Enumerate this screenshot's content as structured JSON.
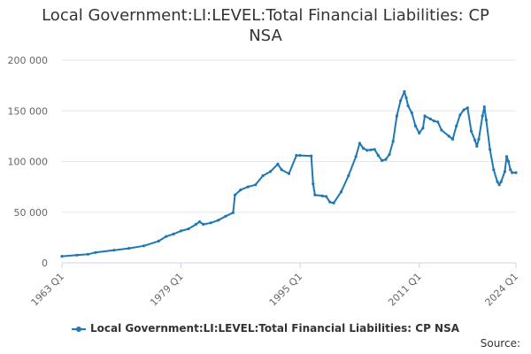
{
  "chart_data": {
    "type": "line",
    "title": "Local Government:LI:LEVEL:Total Financial Liabilities: CP NSA",
    "title_lines": [
      "Local Government:LI:LEVEL:Total Financial Liabilities: CP",
      "NSA"
    ],
    "xlabel": "",
    "ylabel": "",
    "ylim": [
      0,
      200000
    ],
    "yticks": [
      0,
      50000,
      100000,
      150000,
      200000
    ],
    "ytick_labels": [
      "0",
      "50 000",
      "100 000",
      "150 000",
      "200 000"
    ],
    "xlim": [
      1963.0,
      2024.0
    ],
    "xticks": [
      1963.0,
      1979.0,
      1995.0,
      2011.0,
      2024.0
    ],
    "xtick_labels": [
      "1963 Q1",
      "1979 Q1",
      "1995 Q1",
      "2011 Q1",
      "2024 Q1"
    ],
    "grid": true,
    "legend_position": "bottom",
    "color": "#1f77b4",
    "series": [
      {
        "name": "Local Government:LI:LEVEL:Total Financial Liabilities: CP NSA",
        "points": [
          [
            1963.0,
            6500
          ],
          [
            1965.0,
            7600
          ],
          [
            1966.5,
            8500
          ],
          [
            1967.5,
            10200
          ],
          [
            1970.0,
            12500
          ],
          [
            1972.0,
            14300
          ],
          [
            1974.0,
            16800
          ],
          [
            1976.0,
            21500
          ],
          [
            1977.0,
            26000
          ],
          [
            1978.0,
            28500
          ],
          [
            1979.0,
            31500
          ],
          [
            1980.0,
            33500
          ],
          [
            1981.0,
            38000
          ],
          [
            1981.5,
            40500
          ],
          [
            1982.0,
            38000
          ],
          [
            1983.0,
            39500
          ],
          [
            1984.0,
            42000
          ],
          [
            1985.0,
            46000
          ],
          [
            1986.0,
            49500
          ],
          [
            1986.25,
            67000
          ],
          [
            1987.0,
            72000
          ],
          [
            1988.0,
            75000
          ],
          [
            1989.0,
            77000
          ],
          [
            1990.0,
            86000
          ],
          [
            1991.0,
            90000
          ],
          [
            1992.0,
            97500
          ],
          [
            1992.5,
            92000
          ],
          [
            1993.5,
            88000
          ],
          [
            1994.5,
            106000
          ],
          [
            1995.0,
            106000
          ],
          [
            1996.5,
            105500
          ],
          [
            1996.75,
            78000
          ],
          [
            1997.0,
            67000
          ],
          [
            1998.0,
            66000
          ],
          [
            1998.5,
            65500
          ],
          [
            1999.0,
            60000
          ],
          [
            1999.5,
            59000
          ],
          [
            2000.5,
            70000
          ],
          [
            2001.5,
            86000
          ],
          [
            2002.5,
            105000
          ],
          [
            2003.0,
            118000
          ],
          [
            2003.5,
            113000
          ],
          [
            2004.0,
            111000
          ],
          [
            2004.5,
            111500
          ],
          [
            2005.0,
            112000
          ],
          [
            2005.5,
            106000
          ],
          [
            2006.0,
            101000
          ],
          [
            2006.5,
            102000
          ],
          [
            2007.0,
            107000
          ],
          [
            2007.5,
            120000
          ],
          [
            2008.0,
            145000
          ],
          [
            2008.5,
            160000
          ],
          [
            2009.0,
            169000
          ],
          [
            2009.25,
            163000
          ],
          [
            2009.5,
            155000
          ],
          [
            2010.0,
            148000
          ],
          [
            2010.5,
            135000
          ],
          [
            2011.0,
            128000
          ],
          [
            2011.5,
            133000
          ],
          [
            2011.75,
            145000
          ],
          [
            2012.5,
            142000
          ],
          [
            2013.0,
            140000
          ],
          [
            2013.5,
            139000
          ],
          [
            2014.0,
            131000
          ],
          [
            2015.0,
            125000
          ],
          [
            2015.5,
            122000
          ],
          [
            2016.0,
            135000
          ],
          [
            2016.5,
            146000
          ],
          [
            2017.0,
            151000
          ],
          [
            2017.5,
            153000
          ],
          [
            2018.0,
            130000
          ],
          [
            2018.5,
            121000
          ],
          [
            2018.75,
            115000
          ],
          [
            2019.0,
            122000
          ],
          [
            2019.5,
            145000
          ],
          [
            2019.75,
            154000
          ],
          [
            2020.0,
            141000
          ],
          [
            2020.5,
            112000
          ],
          [
            2021.0,
            92000
          ],
          [
            2021.5,
            80000
          ],
          [
            2021.75,
            77000
          ],
          [
            2022.0,
            80000
          ],
          [
            2022.5,
            90000
          ],
          [
            2022.75,
            105000
          ],
          [
            2023.0,
            100000
          ],
          [
            2023.25,
            92000
          ],
          [
            2023.5,
            89000
          ],
          [
            2024.0,
            89000
          ]
        ]
      }
    ],
    "legend_label": "Local Government:LI:LEVEL:Total Financial Liabilities: CP NSA"
  },
  "source_label": "Source:"
}
